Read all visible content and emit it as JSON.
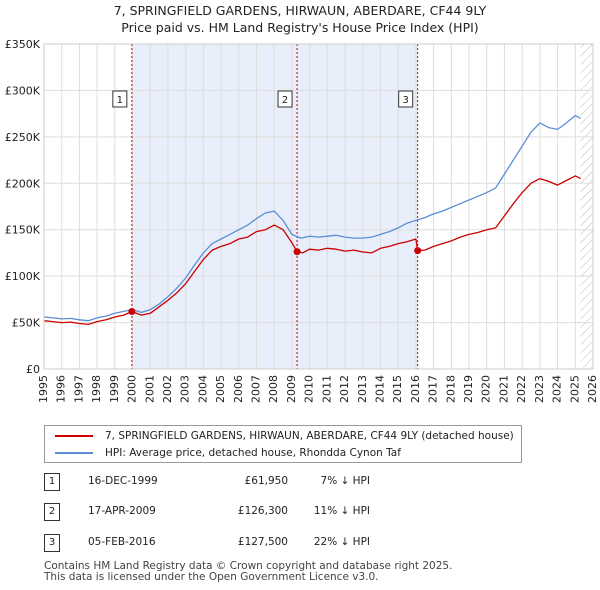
{
  "header": {
    "title": "7, SPRINGFIELD GARDENS, HIRWAUN, ABERDARE, CF44 9LY",
    "subtitle": "Price paid vs. HM Land Registry's House Price Index (HPI)"
  },
  "colors": {
    "property": "#cc0000",
    "hpi": "#5b8fd4",
    "shade": "#e8eefa",
    "grid": "#dddddd",
    "marker_line": "#cc0000"
  },
  "chart_data": {
    "type": "line",
    "xlim": [
      1995,
      2026
    ],
    "ylim": [
      0,
      350000
    ],
    "y_ticks": [
      {
        "value": 0,
        "label": "£0"
      },
      {
        "value": 50000,
        "label": "£50K"
      },
      {
        "value": 100000,
        "label": "£100K"
      },
      {
        "value": 150000,
        "label": "£150K"
      },
      {
        "value": 200000,
        "label": "£200K"
      },
      {
        "value": 250000,
        "label": "£250K"
      },
      {
        "value": 300000,
        "label": "£300K"
      },
      {
        "value": 350000,
        "label": "£350K"
      }
    ],
    "x_ticks": [
      "1995",
      "1996",
      "1997",
      "1998",
      "1999",
      "2000",
      "2001",
      "2002",
      "2003",
      "2004",
      "2005",
      "2006",
      "2007",
      "2008",
      "2009",
      "2010",
      "2011",
      "2012",
      "2013",
      "2014",
      "2015",
      "2016",
      "2017",
      "2018",
      "2019",
      "2020",
      "2021",
      "2022",
      "2023",
      "2024",
      "2025",
      "2026"
    ],
    "shaded_range": [
      1999.96,
      2016.1
    ],
    "hatched_from": 2025.3,
    "series": [
      {
        "name": "7, SPRINGFIELD GARDENS, HIRWAUN, ABERDARE, CF44 9LY (detached house)",
        "x": [
          1995.0,
          1995.5,
          1996.0,
          1996.5,
          1997.0,
          1997.5,
          1998.0,
          1998.5,
          1999.0,
          1999.5,
          1999.96,
          2000.5,
          2001.0,
          2001.5,
          2002.0,
          2002.5,
          2003.0,
          2003.5,
          2004.0,
          2004.5,
          2005.0,
          2005.5,
          2006.0,
          2006.5,
          2007.0,
          2007.5,
          2008.0,
          2008.5,
          2009.0,
          2009.29,
          2009.6,
          2010.0,
          2010.5,
          2011.0,
          2011.5,
          2012.0,
          2012.5,
          2013.0,
          2013.5,
          2014.0,
          2014.5,
          2015.0,
          2015.5,
          2016.0,
          2016.1,
          2016.5,
          2017.0,
          2017.5,
          2018.0,
          2018.5,
          2019.0,
          2019.5,
          2020.0,
          2020.5,
          2021.0,
          2021.5,
          2022.0,
          2022.5,
          2023.0,
          2023.5,
          2024.0,
          2024.5,
          2025.0,
          2025.3
        ],
        "values": [
          52000,
          51000,
          50000,
          50500,
          49000,
          48000,
          51000,
          53000,
          56000,
          58000,
          61950,
          58000,
          60000,
          67000,
          74000,
          82000,
          92000,
          105000,
          118000,
          128000,
          132000,
          135000,
          140000,
          142000,
          148000,
          150000,
          155000,
          150000,
          136000,
          126300,
          125000,
          129000,
          128000,
          130000,
          129000,
          127000,
          128000,
          126000,
          125000,
          130000,
          132000,
          135000,
          137000,
          140000,
          127500,
          128000,
          132000,
          135000,
          138000,
          142000,
          145000,
          147000,
          150000,
          152000,
          165000,
          178000,
          190000,
          200000,
          205000,
          202000,
          198000,
          203000,
          208000,
          205000
        ]
      },
      {
        "name": "HPI: Average price, detached house, Rhondda Cynon Taf",
        "x": [
          1995.0,
          1995.5,
          1996.0,
          1996.5,
          1997.0,
          1997.5,
          1998.0,
          1998.5,
          1999.0,
          1999.5,
          2000.0,
          2000.5,
          2001.0,
          2001.5,
          2002.0,
          2002.5,
          2003.0,
          2003.5,
          2004.0,
          2004.5,
          2005.0,
          2005.5,
          2006.0,
          2006.5,
          2007.0,
          2007.5,
          2008.0,
          2008.5,
          2009.0,
          2009.5,
          2010.0,
          2010.5,
          2011.0,
          2011.5,
          2012.0,
          2012.5,
          2013.0,
          2013.5,
          2014.0,
          2014.5,
          2015.0,
          2015.5,
          2016.0,
          2016.5,
          2017.0,
          2017.5,
          2018.0,
          2018.5,
          2019.0,
          2019.5,
          2020.0,
          2020.5,
          2021.0,
          2021.5,
          2022.0,
          2022.5,
          2023.0,
          2023.5,
          2024.0,
          2024.5,
          2025.0,
          2025.3
        ],
        "values": [
          56000,
          55000,
          54000,
          54500,
          53000,
          52000,
          55000,
          57000,
          60000,
          62000,
          64000,
          61000,
          64000,
          70000,
          78000,
          87000,
          98000,
          112000,
          125000,
          135000,
          140000,
          145000,
          150000,
          155000,
          162000,
          168000,
          170000,
          160000,
          145000,
          141000,
          143000,
          142000,
          143000,
          144000,
          142000,
          141000,
          141000,
          142000,
          145000,
          148000,
          152000,
          157000,
          160000,
          163000,
          167000,
          170000,
          174000,
          178000,
          182000,
          186000,
          190000,
          195000,
          210000,
          225000,
          240000,
          255000,
          265000,
          260000,
          258000,
          265000,
          273000,
          270000
        ]
      }
    ],
    "sales": [
      {
        "label": "1",
        "x": 1999.96,
        "price": 61950
      },
      {
        "label": "2",
        "x": 2009.29,
        "price": 126300
      },
      {
        "label": "3",
        "x": 2016.1,
        "price": 127500
      }
    ]
  },
  "legend": {
    "property_label": "7, SPRINGFIELD GARDENS, HIRWAUN, ABERDARE, CF44 9LY (detached house)",
    "hpi_label": "HPI: Average price, detached house, Rhondda Cynon Taf"
  },
  "sales_table": [
    {
      "num": "1",
      "date": "16-DEC-1999",
      "price": "£61,950",
      "hpi": "7% ↓ HPI"
    },
    {
      "num": "2",
      "date": "17-APR-2009",
      "price": "£126,300",
      "hpi": "11% ↓ HPI"
    },
    {
      "num": "3",
      "date": "05-FEB-2016",
      "price": "£127,500",
      "hpi": "22% ↓ HPI"
    }
  ],
  "footer": {
    "line1": "Contains HM Land Registry data © Crown copyright and database right 2025.",
    "line2": "This data is licensed under the Open Government Licence v3.0."
  }
}
